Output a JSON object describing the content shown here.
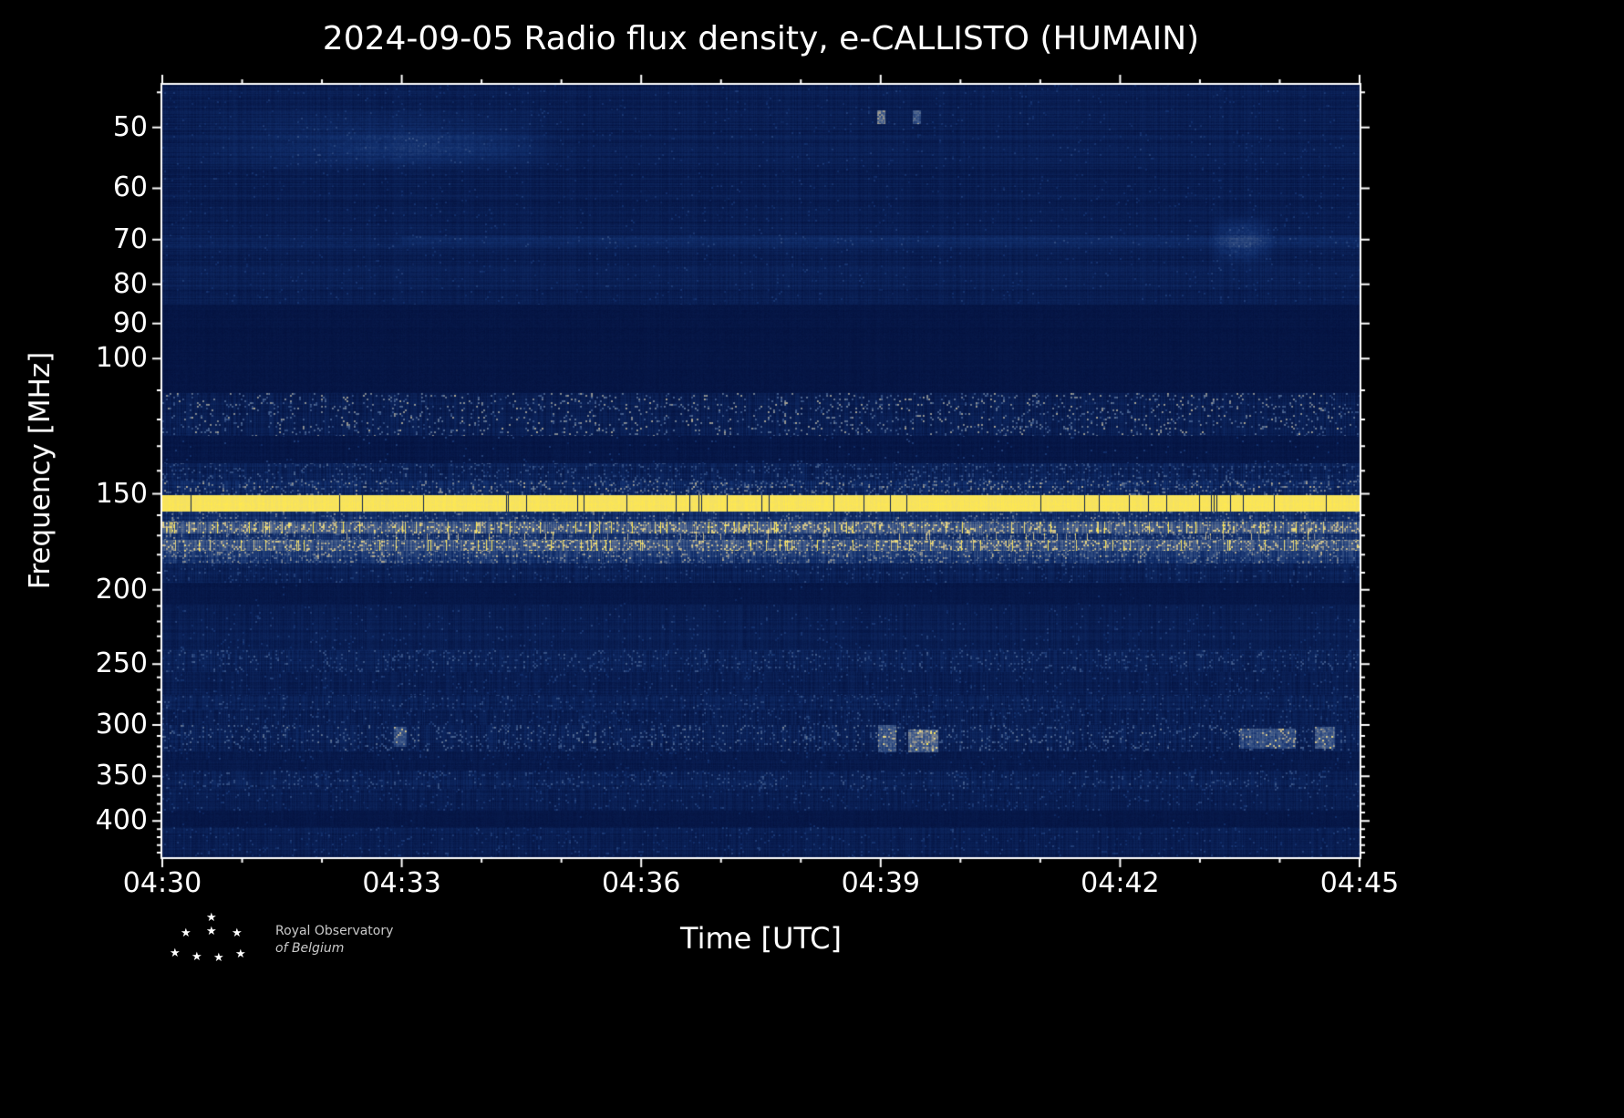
{
  "chart": {
    "title": "2024-09-05 Radio flux density, e-CALLISTO (HUMAIN)",
    "xlabel": "Time [UTC]",
    "ylabel": "Frequency [MHz]",
    "x_ticks": [
      "04:30",
      "04:33",
      "04:36",
      "04:39",
      "04:42",
      "04:45"
    ],
    "y_ticks": [
      "50",
      "60",
      "70",
      "80",
      "90",
      "100",
      "150",
      "200",
      "250",
      "300",
      "350",
      "400"
    ]
  },
  "chart_data": {
    "type": "heatmap",
    "title": "2024-09-05 Radio flux density, e-CALLISTO (HUMAIN)",
    "xlabel": "Time [UTC]",
    "ylabel": "Frequency [MHz]",
    "x_tick_labels": [
      "04:30",
      "04:33",
      "04:36",
      "04:39",
      "04:42",
      "04:45"
    ],
    "y_tick_values_mhz": [
      50,
      60,
      70,
      80,
      90,
      100,
      150,
      200,
      250,
      300,
      350,
      400
    ],
    "y_scale": "log",
    "y_axis_inverted": true,
    "y_range_mhz": [
      44,
      446
    ],
    "time_range_utc": [
      "04:30",
      "04:45"
    ],
    "background_color": "#000000",
    "frame_color": "#ffffff",
    "colormap": [
      {
        "v": 0.0,
        "c": "#04123f"
      },
      {
        "v": 0.25,
        "c": "#12306e"
      },
      {
        "v": 0.5,
        "c": "#49628f"
      },
      {
        "v": 0.7,
        "c": "#b3a98e"
      },
      {
        "v": 0.85,
        "c": "#e3d48a"
      },
      {
        "v": 1.0,
        "c": "#ffe94f"
      }
    ],
    "bands": [
      {
        "flo": 44,
        "fhi": 85,
        "base": 0.1,
        "row": 0.05,
        "col": 0.03,
        "sp": 0.02,
        "sb": 0.18,
        "note": "faint striated galactic/ionospheric noise"
      },
      {
        "flo": 85,
        "fhi": 111,
        "base": 0.035,
        "row": 0.012,
        "col": 0.01,
        "sp": 0.0,
        "sb": 0,
        "note": "quiet dark gap (FM band)"
      },
      {
        "flo": 111,
        "fhi": 126,
        "base": 0.1,
        "row": 0.03,
        "col": 0.05,
        "sp": 0.1,
        "sb": 0.55,
        "note": "airband speckled RFI"
      },
      {
        "flo": 126,
        "fhi": 137,
        "base": 0.045,
        "row": 0.02,
        "col": 0.02,
        "sp": 0.012,
        "sb": 0.3
      },
      {
        "flo": 137,
        "fhi": 144,
        "base": 0.13,
        "row": 0.04,
        "col": 0.06,
        "sp": 0.1,
        "sb": 0.35
      },
      {
        "flo": 144,
        "fhi": 150.5,
        "base": 0.17,
        "row": 0.05,
        "col": 0.08,
        "sp": 0.16,
        "sb": 0.45
      },
      {
        "flo": 150.5,
        "fhi": 158,
        "base": 0.97,
        "row": 0.01,
        "col": 0.02,
        "sp": 0,
        "sb": 0,
        "gap": 0.02,
        "note": "strong continuous RFI carrier (bright yellow band)"
      },
      {
        "flo": 158,
        "fhi": 163,
        "base": 0.22,
        "row": 0.05,
        "col": 0.08,
        "sp": 0.1,
        "sb": 0.35
      },
      {
        "flo": 163,
        "fhi": 169,
        "base": 0.45,
        "row": 0.06,
        "col": 0.12,
        "sp": 0.22,
        "sb": 0.4,
        "streak": 0.05,
        "note": "pale RFI band with vertical bursts"
      },
      {
        "flo": 169,
        "fhi": 172,
        "base": 0.26,
        "row": 0.05,
        "col": 0.1,
        "sp": 0.12,
        "sb": 0.35,
        "streak": 0.03
      },
      {
        "flo": 172,
        "fhi": 178,
        "base": 0.42,
        "row": 0.06,
        "col": 0.12,
        "sp": 0.2,
        "sb": 0.4,
        "streak": 0.05
      },
      {
        "flo": 178,
        "fhi": 185,
        "base": 0.28,
        "row": 0.05,
        "col": 0.1,
        "sp": 0.15,
        "sb": 0.35
      },
      {
        "flo": 185,
        "fhi": 196,
        "base": 0.13,
        "row": 0.04,
        "col": 0.05,
        "sp": 0.05,
        "sb": 0.25
      },
      {
        "flo": 196,
        "fhi": 209,
        "base": 0.05,
        "row": 0.015,
        "col": 0.015,
        "sp": 0.004,
        "sb": 0.2,
        "note": "dark band near 200 MHz"
      },
      {
        "flo": 209,
        "fhi": 240,
        "base": 0.1,
        "row": 0.035,
        "col": 0.035,
        "sp": 0.03,
        "sb": 0.22
      },
      {
        "flo": 240,
        "fhi": 256,
        "base": 0.13,
        "row": 0.04,
        "col": 0.05,
        "sp": 0.1,
        "sb": 0.32,
        "note": "speckled band near 250 MHz"
      },
      {
        "flo": 256,
        "fhi": 274,
        "base": 0.1,
        "row": 0.035,
        "col": 0.04,
        "sp": 0.04,
        "sb": 0.25
      },
      {
        "flo": 274,
        "fhi": 286,
        "base": 0.12,
        "row": 0.04,
        "col": 0.05,
        "sp": 0.07,
        "sb": 0.28
      },
      {
        "flo": 286,
        "fhi": 300,
        "base": 0.11,
        "row": 0.04,
        "col": 0.05,
        "sp": 0.06,
        "sb": 0.28
      },
      {
        "flo": 300,
        "fhi": 325,
        "base": 0.12,
        "row": 0.04,
        "col": 0.06,
        "sp": 0.11,
        "sb": 0.4,
        "note": "noisy band with intermittent bright blobs"
      },
      {
        "flo": 325,
        "fhi": 333,
        "base": 0.08,
        "row": 0.03,
        "col": 0.03,
        "sp": 0.03,
        "sb": 0.22
      },
      {
        "flo": 333,
        "fhi": 344,
        "base": 0.065,
        "row": 0.025,
        "col": 0.025,
        "sp": 0.015,
        "sb": 0.2
      },
      {
        "flo": 344,
        "fhi": 363,
        "base": 0.12,
        "row": 0.04,
        "col": 0.05,
        "sp": 0.09,
        "sb": 0.3,
        "note": "speckled band near 350 MHz"
      },
      {
        "flo": 363,
        "fhi": 388,
        "base": 0.1,
        "row": 0.035,
        "col": 0.04,
        "sp": 0.05,
        "sb": 0.25
      },
      {
        "flo": 388,
        "fhi": 408,
        "base": 0.05,
        "row": 0.015,
        "col": 0.015,
        "sp": 0.006,
        "sb": 0.2,
        "note": "dark band near 400 MHz"
      },
      {
        "flo": 408,
        "fhi": 446,
        "base": 0.1,
        "row": 0.035,
        "col": 0.04,
        "sp": 0.05,
        "sb": 0.22
      }
    ],
    "features": [
      {
        "flo": 47,
        "fhi": 58,
        "tlo": 0.02,
        "thi": 0.34,
        "boost": 0.1,
        "soft": true,
        "note": "diffuse brightening 50-55 MHz, 04:30-04:35"
      },
      {
        "flo": 50,
        "fhi": 56,
        "tlo": 0.13,
        "thi": 0.33,
        "boost": 0.09,
        "soft": true
      },
      {
        "flo": 69,
        "fhi": 71.5,
        "tlo": 0.0,
        "thi": 1.0,
        "boost": 0.06,
        "soft": false,
        "note": "faint line at ~70 MHz"
      },
      {
        "flo": 69.3,
        "fhi": 71,
        "tlo": 0.2,
        "thi": 1.0,
        "boost": 0.07,
        "soft": false
      },
      {
        "flo": 65,
        "fhi": 76,
        "tlo": 0.875,
        "thi": 0.93,
        "boost": 0.2,
        "soft": true,
        "note": "bright patch ~70 MHz near 04:43"
      },
      {
        "flo": 78,
        "fhi": 81,
        "tlo": 0.0,
        "thi": 1.0,
        "boost": 0.035,
        "soft": false
      },
      {
        "flo": 47.5,
        "fhi": 49.5,
        "tlo": 0.597,
        "thi": 0.604,
        "boost": 0.55,
        "soft": false
      },
      {
        "flo": 47.5,
        "fhi": 49.5,
        "tlo": 0.627,
        "thi": 0.634,
        "boost": 0.45,
        "soft": false
      },
      {
        "flo": 302,
        "fhi": 320,
        "tlo": 0.193,
        "thi": 0.204,
        "boost": 0.35,
        "soft": false
      },
      {
        "flo": 300,
        "fhi": 326,
        "tlo": 0.598,
        "thi": 0.613,
        "boost": 0.4,
        "soft": false,
        "note": "bright blob near 04:39"
      },
      {
        "flo": 304,
        "fhi": 326,
        "tlo": 0.623,
        "thi": 0.648,
        "boost": 0.5,
        "soft": false
      },
      {
        "flo": 303,
        "fhi": 322,
        "tlo": 0.9,
        "thi": 0.947,
        "boost": 0.35,
        "soft": false
      },
      {
        "flo": 302,
        "fhi": 322,
        "tlo": 0.963,
        "thi": 0.98,
        "boost": 0.42,
        "soft": false
      }
    ]
  },
  "footer": {
    "line1": "Royal Observatory",
    "line2": "of Belgium",
    "star_glyph": "★"
  }
}
